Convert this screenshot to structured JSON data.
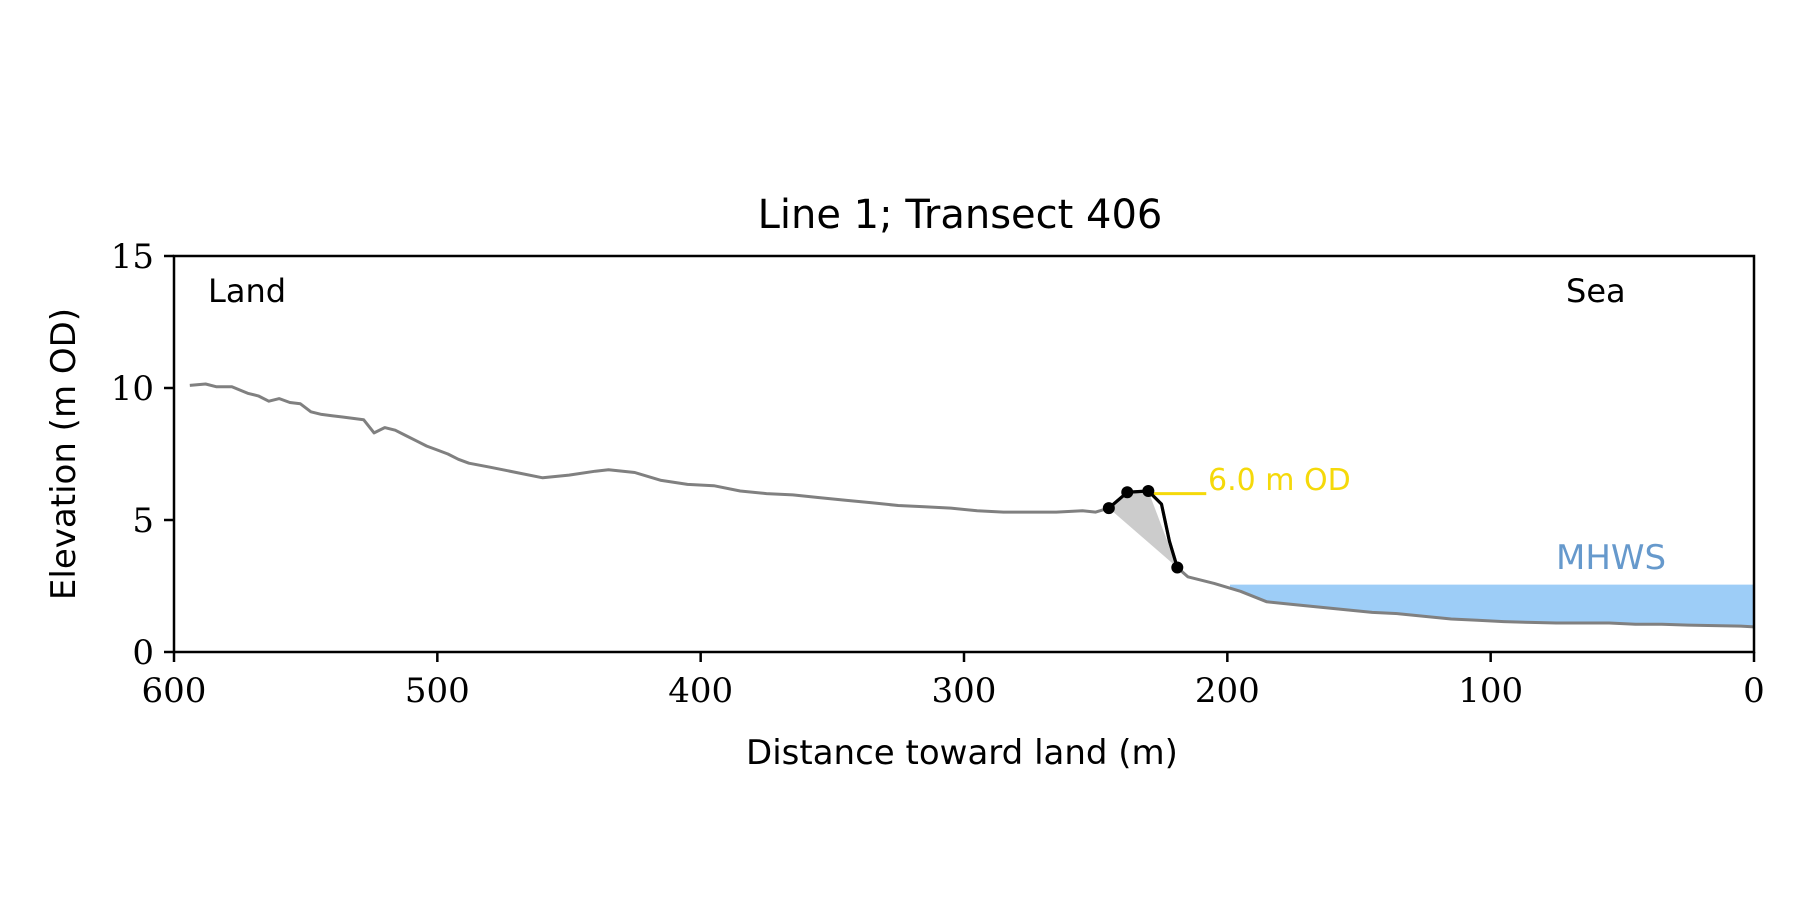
{
  "chart_data": {
    "type": "line",
    "title": "Line 1; Transect 406",
    "xlabel": "Distance toward land (m)",
    "ylabel": "Elevation (m OD)",
    "xlim": [
      600,
      0
    ],
    "ylim": [
      0,
      15
    ],
    "x_ticks": [
      600,
      500,
      400,
      300,
      200,
      100,
      0
    ],
    "y_ticks": [
      0,
      5,
      10,
      15
    ],
    "grid": false,
    "region_labels": {
      "left": "Land",
      "right": "Sea"
    },
    "colors": {
      "profile": "#808080",
      "feature": "#000000",
      "fill": "#cccccc",
      "threshold": "#f5d90a",
      "mhws": "#9dcdf7",
      "mhws_label": "#6699cc"
    },
    "series": [
      {
        "x": [
          594,
          588,
          584,
          578,
          572,
          568,
          564,
          560,
          556,
          552,
          548,
          544,
          540,
          536,
          532,
          528,
          524,
          520,
          516,
          512,
          508,
          504,
          500,
          496,
          492,
          488,
          480,
          470,
          460,
          450,
          440,
          435,
          425,
          415,
          405,
          395,
          385,
          375,
          365,
          355,
          345,
          335,
          325,
          315,
          305,
          295,
          285,
          275,
          265,
          255,
          250,
          245,
          238,
          230,
          225,
          222,
          219,
          215,
          205,
          195,
          185,
          175,
          165,
          155,
          145,
          135,
          125,
          115,
          105,
          95,
          85,
          75,
          65,
          55,
          45,
          35,
          25,
          15,
          5,
          0
        ],
        "y": [
          10.1,
          10.15,
          10.05,
          10.05,
          9.8,
          9.7,
          9.5,
          9.6,
          9.45,
          9.4,
          9.1,
          9.0,
          8.95,
          8.9,
          8.85,
          8.8,
          8.3,
          8.5,
          8.4,
          8.2,
          8.0,
          7.8,
          7.65,
          7.5,
          7.3,
          7.15,
          7.0,
          6.8,
          6.6,
          6.7,
          6.85,
          6.9,
          6.8,
          6.5,
          6.35,
          6.3,
          6.1,
          6.0,
          5.95,
          5.85,
          5.75,
          5.65,
          5.55,
          5.5,
          5.45,
          5.35,
          5.3,
          5.3,
          5.3,
          5.35,
          5.3,
          5.45,
          6.05,
          6.1,
          5.6,
          4.2,
          3.2,
          2.85,
          2.6,
          2.3,
          1.9,
          1.8,
          1.7,
          1.6,
          1.5,
          1.45,
          1.35,
          1.25,
          1.2,
          1.15,
          1.12,
          1.1,
          1.1,
          1.1,
          1.05,
          1.05,
          1.02,
          1.0,
          0.98,
          0.95
        ]
      }
    ],
    "feature_points": {
      "x": [
        245,
        238,
        230,
        219
      ],
      "y": [
        5.45,
        6.05,
        6.1,
        3.2
      ]
    },
    "threshold": {
      "label": "6.0 m OD",
      "value": 6.0,
      "x_range": [
        230,
        208
      ]
    },
    "mhws": {
      "label": "MHWS",
      "value": 2.55,
      "x_range": [
        199,
        0
      ]
    }
  }
}
